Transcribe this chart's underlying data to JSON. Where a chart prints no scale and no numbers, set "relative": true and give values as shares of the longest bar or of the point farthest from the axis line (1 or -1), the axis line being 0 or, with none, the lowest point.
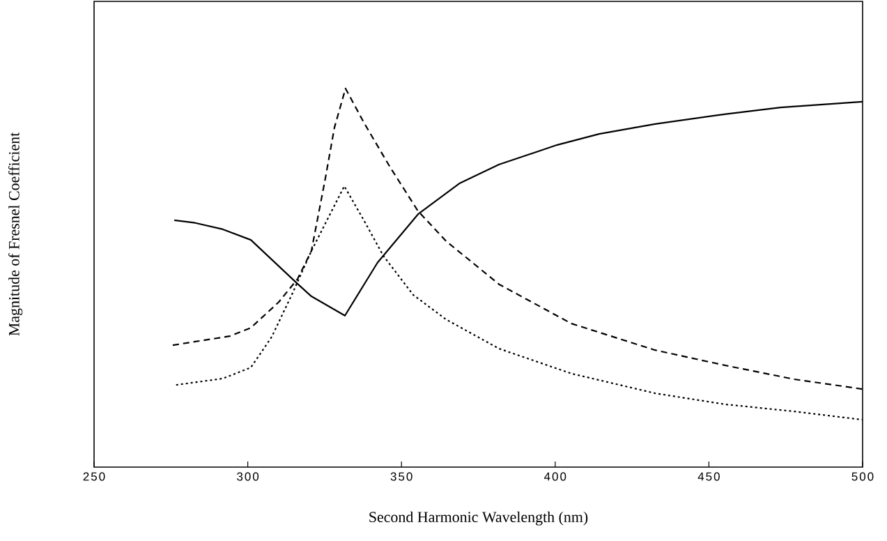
{
  "chart_data": {
    "type": "line",
    "xlabel": "Second Harmonic Wavelength (nm)",
    "ylabel": "Magnitude of Fresnel Coefficient",
    "relative": true,
    "xlim": [
      250,
      500
    ],
    "xticks": [
      250,
      300,
      350,
      400,
      450,
      500
    ],
    "grid": false,
    "marker": "none",
    "series": [
      {
        "color": "#000000",
        "line_style": "solid",
        "x": [
          276.1,
          282.9,
          291.9,
          301.0,
          316.2,
          320.7,
          331.6,
          342.2,
          355.4,
          369.0,
          381.7,
          400.7,
          414.3,
          432.5,
          455.1,
          473.3,
          500
        ],
        "values": [
          0.652,
          0.645,
          0.628,
          0.6,
          0.484,
          0.451,
          0.4,
          0.54,
          0.668,
          0.75,
          0.799,
          0.851,
          0.88,
          0.906,
          0.932,
          0.95,
          0.965
        ]
      },
      {
        "color": "#000000",
        "line_style": "dashed",
        "x": [
          275.6,
          294.2,
          301.0,
          310.1,
          316.2,
          320.7,
          325.2,
          328.2,
          331.8,
          337.9,
          346.3,
          355.4,
          364.5,
          381.7,
          405.3,
          432.5,
          455.1,
          477.8,
          500
        ],
        "values": [
          0.322,
          0.346,
          0.368,
          0.436,
          0.497,
          0.571,
          0.761,
          0.897,
          1,
          0.908,
          0.792,
          0.676,
          0.597,
          0.483,
          0.379,
          0.309,
          0.269,
          0.232,
          0.206
        ]
      },
      {
        "color": "#000000",
        "line_style": "dotted",
        "x": [
          276.7,
          291.9,
          301.0,
          307.8,
          314.6,
          320.7,
          331.4,
          337.9,
          344.1,
          353.8,
          364.5,
          381.7,
          405.3,
          432.5,
          455.1,
          477.8,
          500
        ],
        "values": [
          0.217,
          0.234,
          0.263,
          0.344,
          0.46,
          0.571,
          0.742,
          0.65,
          0.558,
          0.455,
          0.39,
          0.313,
          0.247,
          0.195,
          0.166,
          0.147,
          0.125
        ]
      }
    ]
  }
}
